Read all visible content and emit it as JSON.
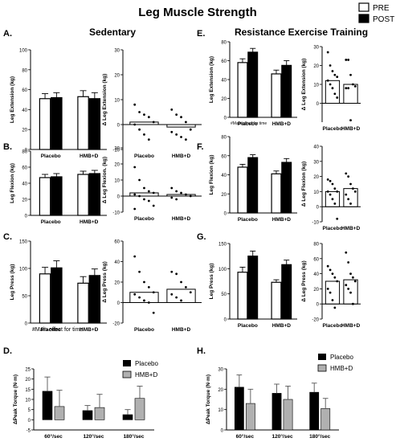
{
  "figure": {
    "title": "Leg Muscle Strength",
    "legend_pre_post": [
      "PRE",
      "POST"
    ],
    "legend_placebo_hmb": [
      "Placebo",
      "HMB+D"
    ],
    "col_left_title": "Sedentary",
    "col_right_title": "Resistance Exercise Training",
    "panel_letters": [
      "A.",
      "B.",
      "C.",
      "D.",
      "E.",
      "F.",
      "G.",
      "H."
    ],
    "footnote_left": "#Main effect for time",
    "footnote_right": "#Main effect for time",
    "colors": {
      "pre": "#ffffff",
      "post": "#000000",
      "placebo": "#000000",
      "hmb": "#b0b0b0"
    }
  },
  "chart_data": [
    {
      "id": "A1",
      "type": "bar",
      "ylabel": "Leg Extension (kg)",
      "categories": [
        "Placebo",
        "HMB+D"
      ],
      "yticks": [
        0,
        20,
        40,
        60,
        80,
        100
      ],
      "ylim": [
        0,
        100
      ],
      "series": [
        {
          "name": "PRE",
          "values": [
            51,
            53
          ],
          "err": [
            5,
            6
          ]
        },
        {
          "name": "POST",
          "values": [
            52,
            51
          ],
          "err": [
            5,
            6
          ]
        }
      ]
    },
    {
      "id": "A2",
      "type": "scatter",
      "ylabel": "Δ Leg Extension (kg)",
      "categories": [
        "Placebo",
        "HMB+D"
      ],
      "yticks": [
        -10,
        0,
        10,
        20,
        30
      ],
      "ylim": [
        -10,
        30
      ],
      "means": [
        1,
        -1
      ],
      "points": [
        [
          8,
          5,
          4,
          3,
          1,
          0,
          -2,
          -4,
          -6
        ],
        [
          6,
          4,
          3,
          1,
          -2,
          -3,
          -4,
          -5,
          -6
        ]
      ]
    },
    {
      "id": "B1",
      "type": "bar",
      "ylabel": "Leg Flexion (kg)",
      "categories": [
        "Placebo",
        "HMB+D"
      ],
      "yticks": [
        0,
        20,
        40,
        60,
        80
      ],
      "ylim": [
        0,
        80
      ],
      "series": [
        {
          "name": "PRE",
          "values": [
            47,
            51
          ],
          "err": [
            4,
            4
          ]
        },
        {
          "name": "POST",
          "values": [
            48,
            52
          ],
          "err": [
            4,
            4
          ]
        }
      ]
    },
    {
      "id": "B2",
      "type": "scatter",
      "ylabel": "Δ Leg Flexion. (kg)",
      "categories": [
        "Placebo",
        "HMB+D"
      ],
      "yticks": [
        -10,
        0,
        10,
        20,
        30
      ],
      "ylim": [
        -10,
        30
      ],
      "means": [
        2,
        1
      ],
      "points": [
        [
          18,
          10,
          5,
          3,
          2,
          1,
          0,
          -2,
          -3,
          -6,
          -8
        ],
        [
          5,
          3,
          2,
          1,
          0,
          -1,
          -2
        ]
      ]
    },
    {
      "id": "C1",
      "type": "bar",
      "ylabel": "Leg Press (kg)",
      "categories": [
        "Placebo",
        "HMB+D"
      ],
      "yticks": [
        0,
        50,
        100,
        150
      ],
      "ylim": [
        0,
        150
      ],
      "series": [
        {
          "name": "PRE",
          "values": [
            90,
            73
          ],
          "err": [
            12,
            12
          ]
        },
        {
          "name": "POST",
          "values": [
            101,
            87
          ],
          "err": [
            13,
            12
          ]
        }
      ]
    },
    {
      "id": "C2",
      "type": "scatter",
      "ylabel": "Δ Leg Press (kg)",
      "categories": [
        "Placebo",
        "HMB+D"
      ],
      "yticks": [
        -20,
        0,
        20,
        40,
        60
      ],
      "ylim": [
        -20,
        60
      ],
      "means": [
        10,
        13
      ],
      "points": [
        [
          45,
          30,
          20,
          15,
          10,
          8,
          5,
          2,
          0,
          -10
        ],
        [
          30,
          28,
          20,
          15,
          10,
          8,
          5,
          2
        ]
      ]
    },
    {
      "id": "E1",
      "type": "bar",
      "ylabel": "Leg Extension (kg)",
      "categories": [
        "Placebo",
        "HMB+D"
      ],
      "yticks": [
        0,
        20,
        40,
        60,
        80
      ],
      "ylim": [
        0,
        80
      ],
      "series": [
        {
          "name": "PRE",
          "values": [
            58,
            46
          ],
          "err": [
            4,
            4
          ]
        },
        {
          "name": "POST",
          "values": [
            69,
            55
          ],
          "err": [
            4,
            5
          ]
        }
      ]
    },
    {
      "id": "E2",
      "type": "scatter",
      "ylabel": "Δ Leg Extension (kg)",
      "categories": [
        "Placebo",
        "HMB+D"
      ],
      "yticks": [
        0,
        10,
        20,
        30
      ],
      "ylim": [
        -10,
        30
      ],
      "means": [
        12,
        10
      ],
      "points": [
        [
          27,
          20,
          17,
          15,
          14,
          12,
          10,
          8,
          5,
          3
        ],
        [
          23,
          23,
          15,
          10,
          9,
          8,
          8,
          -9
        ]
      ]
    },
    {
      "id": "F1",
      "type": "bar",
      "ylabel": "Leg Flexion (kg)",
      "categories": [
        "Placebo",
        "HMB+D"
      ],
      "yticks": [
        0,
        20,
        40,
        60,
        80
      ],
      "ylim": [
        0,
        80
      ],
      "series": [
        {
          "name": "PRE",
          "values": [
            48,
            41
          ],
          "err": [
            3,
            3
          ]
        },
        {
          "name": "POST",
          "values": [
            58,
            53
          ],
          "err": [
            3,
            4
          ]
        }
      ]
    },
    {
      "id": "F2",
      "type": "scatter",
      "ylabel": "Δ Leg Flexion (kg)",
      "categories": [
        "Placebo",
        "HMB+D"
      ],
      "yticks": [
        -10,
        0,
        10,
        20,
        30,
        40
      ],
      "ylim": [
        -10,
        40
      ],
      "means": [
        10,
        12
      ],
      "points": [
        [
          18,
          17,
          15,
          12,
          10,
          10,
          8,
          5,
          2,
          -8
        ],
        [
          22,
          20,
          15,
          12,
          10,
          8,
          5,
          2
        ]
      ]
    },
    {
      "id": "G1",
      "type": "bar",
      "ylabel": "Leg Press (kg)",
      "categories": [
        "Placebo",
        "HMB+D"
      ],
      "yticks": [
        0,
        50,
        100,
        150
      ],
      "ylim": [
        0,
        150
      ],
      "series": [
        {
          "name": "PRE",
          "values": [
            93,
            73
          ],
          "err": [
            10,
            5
          ]
        },
        {
          "name": "POST",
          "values": [
            125,
            108
          ],
          "err": [
            10,
            9
          ]
        }
      ]
    },
    {
      "id": "G2",
      "type": "scatter",
      "ylabel": "Δ Leg Press (kg)",
      "categories": [
        "Placebo",
        "HMB+D"
      ],
      "yticks": [
        -20,
        0,
        20,
        40,
        60,
        80
      ],
      "ylim": [
        -20,
        80
      ],
      "means": [
        30,
        32
      ],
      "points": [
        [
          50,
          45,
          40,
          35,
          30,
          20,
          15,
          5,
          -5
        ],
        [
          68,
          55,
          40,
          35,
          30,
          25,
          20,
          15,
          0
        ]
      ]
    },
    {
      "id": "D",
      "type": "bar",
      "ylabel": "ΔPeak Torque (N·m)",
      "categories": [
        "60°/sec",
        "120°/sec",
        "180°/sec"
      ],
      "yticks": [
        -5,
        0,
        5,
        10,
        15,
        20,
        25
      ],
      "ylim": [
        -5,
        25
      ],
      "series": [
        {
          "name": "Placebo",
          "values": [
            14,
            4.5,
            2.5
          ],
          "err": [
            7,
            2.5,
            2.5
          ]
        },
        {
          "name": "HMB+D",
          "values": [
            6.5,
            6,
            10.5
          ],
          "err": [
            8,
            6.5,
            6
          ]
        }
      ]
    },
    {
      "id": "H",
      "type": "bar",
      "ylabel": "ΔPeak Torque (N·m)",
      "categories": [
        "60°/sec",
        "120°/sec",
        "180°/sec"
      ],
      "yticks": [
        0,
        10,
        20,
        30
      ],
      "ylim": [
        0,
        30
      ],
      "series": [
        {
          "name": "Placebo",
          "values": [
            21,
            18,
            18.5
          ],
          "err": [
            6,
            4.5,
            4.5
          ]
        },
        {
          "name": "HMB+D",
          "values": [
            13,
            15,
            10.5
          ],
          "err": [
            7,
            6.5,
            5
          ]
        }
      ]
    }
  ]
}
